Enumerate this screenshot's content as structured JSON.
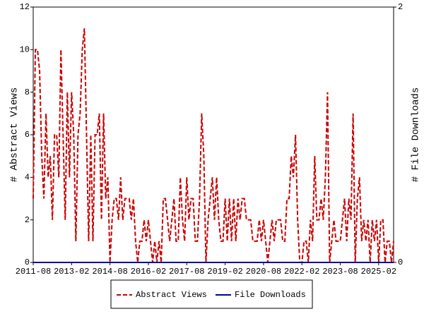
{
  "chart_data": {
    "type": "line",
    "ylabel": "# Abstract Views",
    "y2label": "# File Downloads",
    "x": [
      "2011-08",
      "2011-09",
      "2011-10",
      "2011-11",
      "2011-12",
      "2012-01",
      "2012-02",
      "2012-03",
      "2012-04",
      "2012-05",
      "2012-06",
      "2012-07",
      "2012-08",
      "2012-09",
      "2012-10",
      "2012-11",
      "2012-12",
      "2013-01",
      "2013-02",
      "2013-03",
      "2013-04",
      "2013-05",
      "2013-06",
      "2013-07",
      "2013-08",
      "2013-09",
      "2013-10",
      "2013-11",
      "2013-12",
      "2014-01",
      "2014-02",
      "2014-03",
      "2014-04",
      "2014-05",
      "2014-06",
      "2014-07",
      "2014-08",
      "2014-09",
      "2014-10",
      "2014-11",
      "2014-12",
      "2015-01",
      "2015-02",
      "2015-03",
      "2015-04",
      "2015-05",
      "2015-06",
      "2015-07",
      "2015-08",
      "2015-09",
      "2015-10",
      "2015-11",
      "2015-12",
      "2016-01",
      "2016-02",
      "2016-03",
      "2016-04",
      "2016-05",
      "2016-06",
      "2016-07",
      "2016-08",
      "2016-09",
      "2016-10",
      "2016-11",
      "2016-12",
      "2017-01",
      "2017-02",
      "2017-03",
      "2017-04",
      "2017-05",
      "2017-06",
      "2017-07",
      "2017-08",
      "2017-09",
      "2017-10",
      "2017-11",
      "2017-12",
      "2018-01",
      "2018-02",
      "2018-03",
      "2018-04",
      "2018-05",
      "2018-06",
      "2018-07",
      "2018-08",
      "2018-09",
      "2018-10",
      "2018-11",
      "2018-12",
      "2019-01",
      "2019-02",
      "2019-03",
      "2019-04",
      "2019-05",
      "2019-06",
      "2019-07",
      "2019-08",
      "2019-09",
      "2019-10",
      "2019-11",
      "2019-12",
      "2020-01",
      "2020-02",
      "2020-03",
      "2020-04",
      "2020-05",
      "2020-06",
      "2020-07",
      "2020-08",
      "2020-09",
      "2020-10",
      "2020-11",
      "2020-12",
      "2021-01",
      "2021-02",
      "2021-03",
      "2021-04",
      "2021-05",
      "2021-06",
      "2021-07",
      "2021-08",
      "2021-09",
      "2021-10",
      "2021-11",
      "2021-12",
      "2022-01",
      "2022-02",
      "2022-03",
      "2022-04",
      "2022-05",
      "2022-06",
      "2022-07",
      "2022-08",
      "2022-09",
      "2022-10",
      "2022-11",
      "2022-12",
      "2023-01",
      "2023-02",
      "2023-03",
      "2023-04",
      "2023-05",
      "2023-06",
      "2023-07",
      "2023-08",
      "2023-09",
      "2023-10",
      "2023-11",
      "2023-12",
      "2024-01",
      "2024-02",
      "2024-03",
      "2024-04",
      "2024-05",
      "2024-06",
      "2024-07",
      "2024-08",
      "2024-09",
      "2024-10",
      "2024-11",
      "2024-12",
      "2025-01",
      "2025-02",
      "2025-03",
      "2025-04",
      "2025-05",
      "2025-06",
      "2025-07",
      "2025-08",
      "2025-09"
    ],
    "series": [
      {
        "name": "Abstract Views",
        "color": "#cc0000",
        "dash": true,
        "values": [
          3,
          10,
          10,
          9,
          5,
          3,
          7,
          4,
          5,
          2,
          6,
          6,
          4,
          10,
          6,
          2,
          8,
          4,
          8,
          6,
          1,
          6,
          7,
          10,
          11,
          6,
          1,
          6,
          1,
          6,
          6,
          7,
          2,
          7,
          3,
          4,
          0,
          2,
          3,
          3,
          2,
          4,
          2,
          3,
          3,
          3,
          2,
          3,
          1,
          0,
          1,
          1,
          2,
          1,
          2,
          1,
          0,
          1,
          0,
          1,
          0,
          3,
          3,
          2,
          1,
          2,
          3,
          1,
          1,
          4,
          2,
          1,
          4,
          2,
          3,
          3,
          1,
          1,
          3,
          7,
          5,
          0,
          2,
          3,
          4,
          2,
          4,
          2,
          1,
          1,
          3,
          1,
          3,
          1,
          3,
          1,
          3,
          2,
          3,
          3,
          2,
          2,
          2,
          1,
          1,
          1,
          2,
          1,
          2,
          1,
          0,
          1,
          2,
          1,
          2,
          2,
          2,
          1,
          1,
          3,
          3,
          5,
          4,
          6,
          2,
          0,
          0,
          1,
          1,
          0,
          2,
          1,
          5,
          2,
          2,
          3,
          2,
          4,
          8,
          0,
          1,
          2,
          1,
          1,
          1,
          2,
          3,
          1,
          3,
          2,
          7,
          0,
          3,
          4,
          1,
          2,
          1,
          2,
          0,
          2,
          1,
          2,
          0,
          2,
          2,
          0,
          1,
          1,
          0,
          1
        ]
      },
      {
        "name": "File Downloads",
        "color": "#000099",
        "dash": false,
        "axis": "y2",
        "values": [
          0,
          0,
          0,
          0,
          0,
          0,
          0,
          0,
          0,
          0,
          0,
          0,
          0,
          0,
          0,
          0,
          0,
          0,
          0,
          0,
          0,
          0,
          0,
          0,
          0,
          0,
          0,
          0,
          0,
          0,
          0,
          0,
          0,
          0,
          0,
          0,
          0,
          0,
          0,
          0,
          0,
          0,
          0,
          0,
          0,
          0,
          0,
          0,
          0,
          0,
          0,
          0,
          0,
          0,
          0,
          0,
          0,
          0,
          0,
          0,
          0,
          0,
          0,
          0,
          0,
          0,
          0,
          0,
          0,
          0,
          0,
          0,
          0,
          0,
          0,
          0,
          0,
          0,
          0,
          0,
          0,
          0,
          0,
          0,
          0,
          0,
          0,
          0,
          0,
          0,
          0,
          0,
          0,
          0,
          0,
          0,
          0,
          0,
          0,
          0,
          0,
          0,
          0,
          0,
          0,
          0,
          0,
          0,
          0,
          0,
          0,
          0,
          0,
          0,
          0,
          0,
          0,
          0,
          0,
          0,
          0,
          0,
          0,
          0,
          0,
          0,
          0,
          0,
          0,
          0,
          0,
          0,
          0,
          0,
          0,
          0,
          0,
          0,
          0,
          0,
          0,
          0,
          0,
          0,
          0,
          0,
          0,
          0,
          0,
          0,
          0,
          0,
          0,
          0,
          0,
          0,
          0,
          0,
          0,
          0,
          0,
          0,
          0,
          0,
          0,
          0,
          0,
          0,
          0,
          0
        ]
      }
    ],
    "xticks": [
      "2011-08",
      "2013-02",
      "2014-08",
      "2016-02",
      "2017-08",
      "2019-02",
      "2020-08",
      "2022-02",
      "2023-08",
      "2025-02"
    ],
    "ylim": [
      0,
      12
    ],
    "yticks": [
      0,
      2,
      4,
      6,
      8,
      10,
      12
    ],
    "y2lim": [
      0,
      2
    ],
    "y2ticks": [
      0,
      2
    ]
  }
}
